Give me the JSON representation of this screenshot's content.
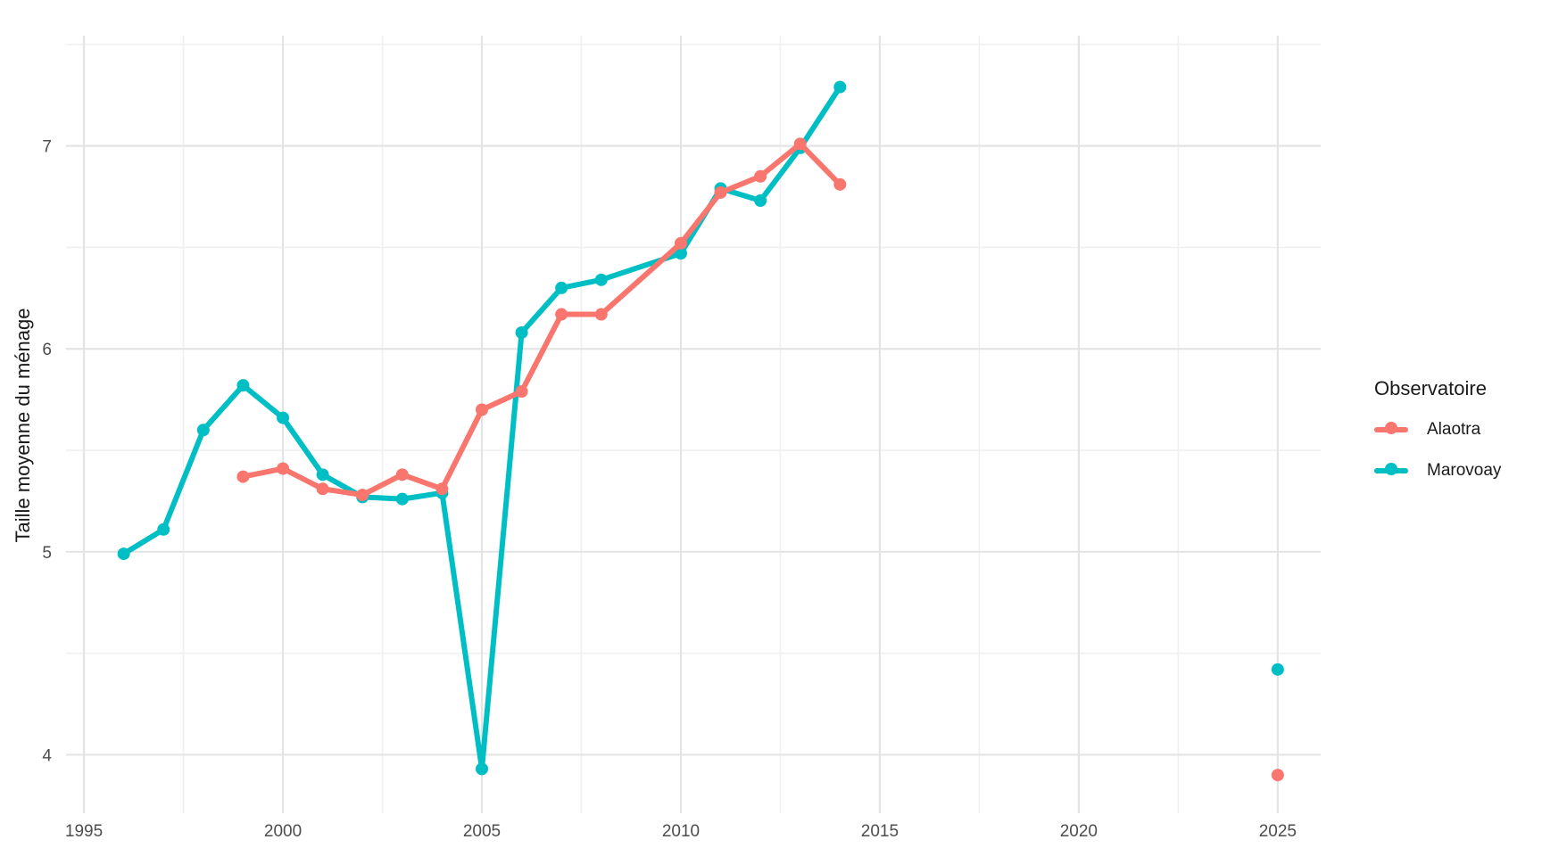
{
  "chart_data": {
    "type": "line",
    "title": "",
    "xlabel": "",
    "ylabel": "Taille moyenne du ménage",
    "legend_title": "Observatoire",
    "legend_position": "right",
    "grid": true,
    "background": "#ffffff",
    "xlim": [
      1994.55,
      2026.08
    ],
    "ylim": [
      3.712,
      7.543
    ],
    "x_major_ticks": [
      1995,
      2000,
      2005,
      2010,
      2015,
      2020,
      2025
    ],
    "x_minor_ticks": [
      1997.5,
      2002.5,
      2007.5,
      2012.5,
      2017.5,
      2022.5
    ],
    "y_major_ticks": [
      4,
      5,
      6,
      7
    ],
    "y_minor_ticks": [
      4.5,
      5.5,
      6.5,
      7.5
    ],
    "colors": {
      "grid_major": "#e4e4e4",
      "grid_minor": "#f0f0f0",
      "tick_label": "#4d4d4d",
      "text": "#1a1a1a"
    },
    "series": [
      {
        "name": "Alaotra",
        "color": "#F8766D",
        "line_points": [
          [
            1999,
            5.37
          ],
          [
            2000,
            5.41
          ],
          [
            2001,
            5.31
          ],
          [
            2002,
            5.28
          ],
          [
            2003,
            5.38
          ],
          [
            2004,
            5.31
          ],
          [
            2005,
            5.7
          ],
          [
            2006,
            5.79
          ],
          [
            2007,
            6.17
          ],
          [
            2008,
            6.17
          ],
          [
            2010,
            6.52
          ],
          [
            2011,
            6.77
          ],
          [
            2012,
            6.85
          ],
          [
            2013,
            7.01
          ],
          [
            2014,
            6.81
          ]
        ],
        "isolated_points": [
          [
            2025,
            3.9
          ]
        ]
      },
      {
        "name": "Marovoay",
        "color": "#00BFC4",
        "line_points": [
          [
            1996,
            4.99
          ],
          [
            1997,
            5.11
          ],
          [
            1998,
            5.6
          ],
          [
            1999,
            5.82
          ],
          [
            2000,
            5.66
          ],
          [
            2001,
            5.38
          ],
          [
            2002,
            5.27
          ],
          [
            2003,
            5.26
          ],
          [
            2004,
            5.29
          ],
          [
            2005,
            3.93
          ],
          [
            2006,
            6.08
          ],
          [
            2007,
            6.3
          ],
          [
            2008,
            6.34
          ],
          [
            2010,
            6.47
          ],
          [
            2011,
            6.79
          ],
          [
            2012,
            6.73
          ],
          [
            2013,
            6.99
          ],
          [
            2014,
            7.29
          ]
        ],
        "isolated_points": [
          [
            2025,
            4.42
          ]
        ]
      }
    ]
  }
}
